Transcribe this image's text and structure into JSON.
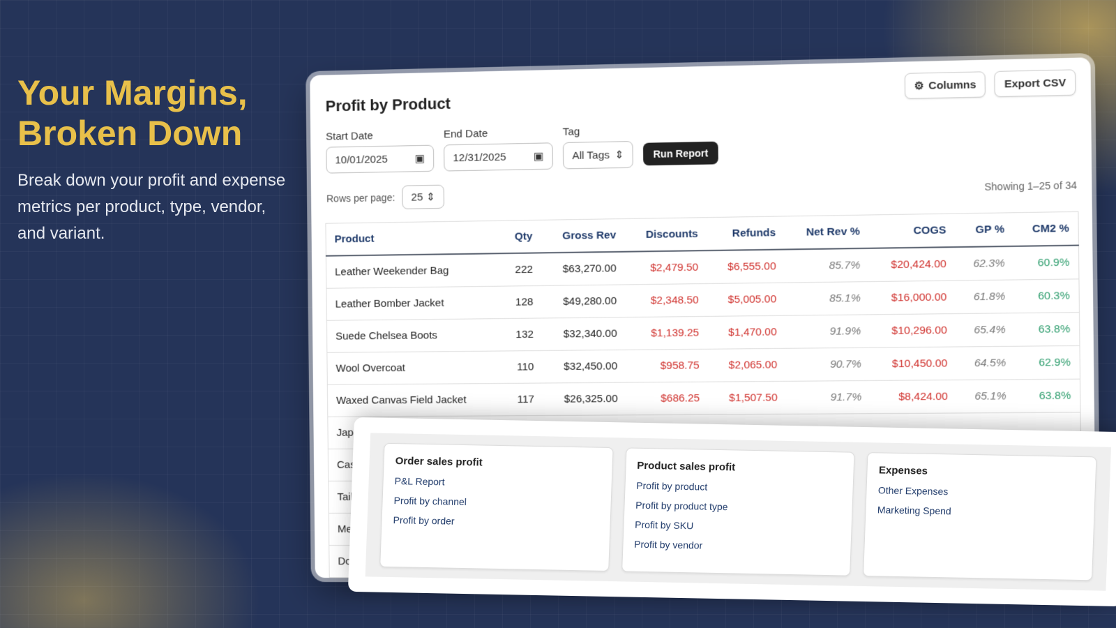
{
  "hero": {
    "headline_line1": "Your Margins,",
    "headline_line2": "Broken Down",
    "subtitle": "Break down your profit and expense metrics per product, type, vendor, and variant."
  },
  "report": {
    "title": "Profit by Product",
    "columns_button": "Columns",
    "export_button": "Export CSV",
    "filters": {
      "start_label": "Start Date",
      "start_value": "10/01/2025",
      "end_label": "End Date",
      "end_value": "12/31/2025",
      "tag_label": "Tag",
      "tag_value": "All Tags",
      "run_button": "Run Report"
    },
    "rows_per_page_label": "Rows per page:",
    "rows_per_page_value": "25",
    "showing": "Showing 1–25 of 34",
    "headers": [
      "Product",
      "Qty",
      "Gross Rev",
      "Discounts",
      "Refunds",
      "Net Rev %",
      "COGS",
      "GP %",
      "CM2 %"
    ],
    "rows": [
      [
        "Leather Weekender Bag",
        "222",
        "$63,270.00",
        "$2,479.50",
        "$6,555.00",
        "85.7%",
        "$20,424.00",
        "62.3%",
        "60.9%"
      ],
      [
        "Leather Bomber Jacket",
        "128",
        "$49,280.00",
        "$2,348.50",
        "$5,005.00",
        "85.1%",
        "$16,000.00",
        "61.8%",
        "60.3%"
      ],
      [
        "Suede Chelsea Boots",
        "132",
        "$32,340.00",
        "$1,139.25",
        "$1,470.00",
        "91.9%",
        "$10,296.00",
        "65.4%",
        "63.8%"
      ],
      [
        "Wool Overcoat",
        "110",
        "$32,450.00",
        "$958.75",
        "$2,065.00",
        "90.7%",
        "$10,450.00",
        "64.5%",
        "62.9%"
      ],
      [
        "Waxed Canvas Field Jacket",
        "117",
        "$26,325.00",
        "$686.25",
        "$1,507.50",
        "91.7%",
        "$8,424.00",
        "65.1%",
        "63.8%"
      ],
      [
        "Japa",
        "",
        "",
        "",
        "",
        "",
        "",
        "",
        ""
      ],
      [
        "Cash",
        "",
        "",
        "",
        "",
        "",
        "",
        "",
        ""
      ],
      [
        "Tailo",
        "",
        "",
        "",
        "",
        "",
        "",
        "",
        ""
      ],
      [
        "Meri",
        "",
        "",
        "",
        "",
        "",
        "",
        "",
        ""
      ],
      [
        "Dow",
        "",
        "",
        "",
        "",
        "",
        "",
        "",
        ""
      ]
    ]
  },
  "menu": [
    {
      "title": "Order sales profit",
      "items": [
        "P&L Report",
        "Profit by channel",
        "Profit by order"
      ]
    },
    {
      "title": "Product sales profit",
      "items": [
        "Profit by product",
        "Profit by product type",
        "Profit by SKU",
        "Profit by vendor"
      ]
    },
    {
      "title": "Expenses",
      "items": [
        "Other Expenses",
        "Marketing Spend"
      ]
    }
  ],
  "colors": {
    "accent": "#e8c04a",
    "negative": "#d0312d",
    "positive": "#2f9e6e",
    "background": "#253459"
  }
}
